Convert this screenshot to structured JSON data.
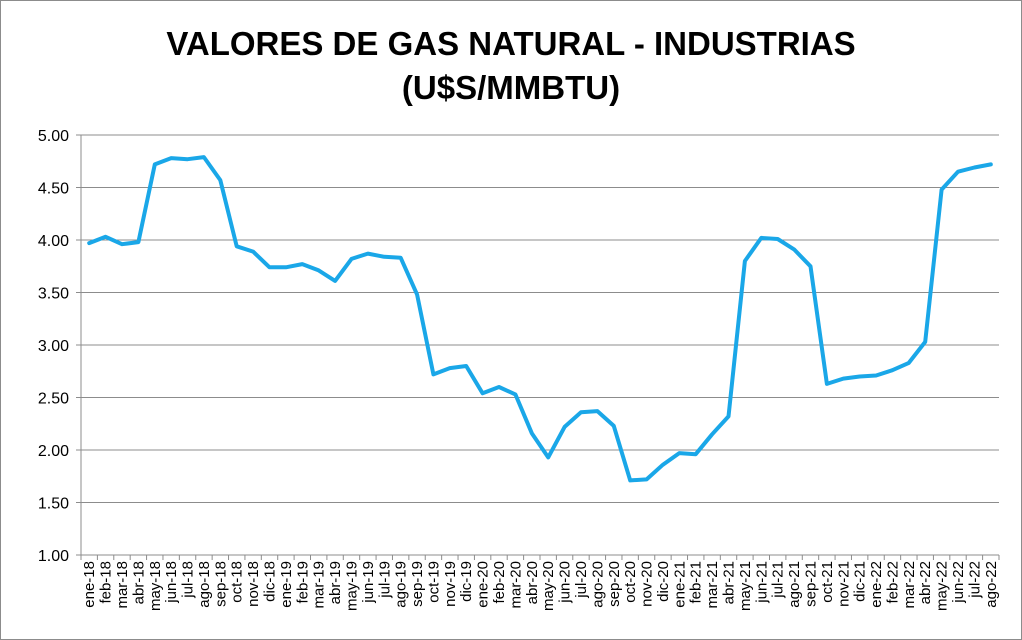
{
  "chart_data": {
    "type": "line",
    "title": "VALORES DE GAS NATURAL - INDUSTRIAS",
    "subtitle": "(U$S/MMBTU)",
    "xlabel": "",
    "ylabel": "",
    "ylim": [
      1.0,
      5.0
    ],
    "ytick_labels": [
      "1.00",
      "1.50",
      "2.00",
      "2.50",
      "3.00",
      "3.50",
      "4.00",
      "4.50",
      "5.00"
    ],
    "grid": true,
    "legend": "none",
    "line_color": "#1aa7e8",
    "categories": [
      "ene-18",
      "feb-18",
      "mar-18",
      "abr-18",
      "may-18",
      "jun-18",
      "jul-18",
      "ago-18",
      "sep-18",
      "oct-18",
      "nov-18",
      "dic-18",
      "ene-19",
      "feb-19",
      "mar-19",
      "abr-19",
      "may-19",
      "jun-19",
      "jul-19",
      "ago-19",
      "sep-19",
      "oct-19",
      "nov-19",
      "dic-19",
      "ene-20",
      "feb-20",
      "mar-20",
      "abr-20",
      "may-20",
      "jun-20",
      "jul-20",
      "ago-20",
      "sep-20",
      "oct-20",
      "nov-20",
      "dic-20",
      "ene-21",
      "feb-21",
      "mar-21",
      "abr-21",
      "may-21",
      "jun-21",
      "jul-21",
      "ago-21",
      "sep-21",
      "oct-21",
      "nov-21",
      "dic-21",
      "ene-22",
      "feb-22",
      "mar-22",
      "abr-22",
      "may-22",
      "jun-22",
      "jul-22",
      "ago-22"
    ],
    "values": [
      3.97,
      4.03,
      3.96,
      3.98,
      4.72,
      4.78,
      4.77,
      4.79,
      4.57,
      3.94,
      3.89,
      3.74,
      3.74,
      3.77,
      3.71,
      3.61,
      3.82,
      3.87,
      3.84,
      3.83,
      3.48,
      2.72,
      2.78,
      2.8,
      2.54,
      2.6,
      2.53,
      2.16,
      1.93,
      2.22,
      2.36,
      2.37,
      2.23,
      1.71,
      1.72,
      1.86,
      1.97,
      1.96,
      2.15,
      2.32,
      3.8,
      4.02,
      4.01,
      3.91,
      3.75,
      2.63,
      2.68,
      2.7,
      2.71,
      2.76,
      2.83,
      3.03,
      4.48,
      4.65,
      4.69,
      4.72
    ]
  }
}
